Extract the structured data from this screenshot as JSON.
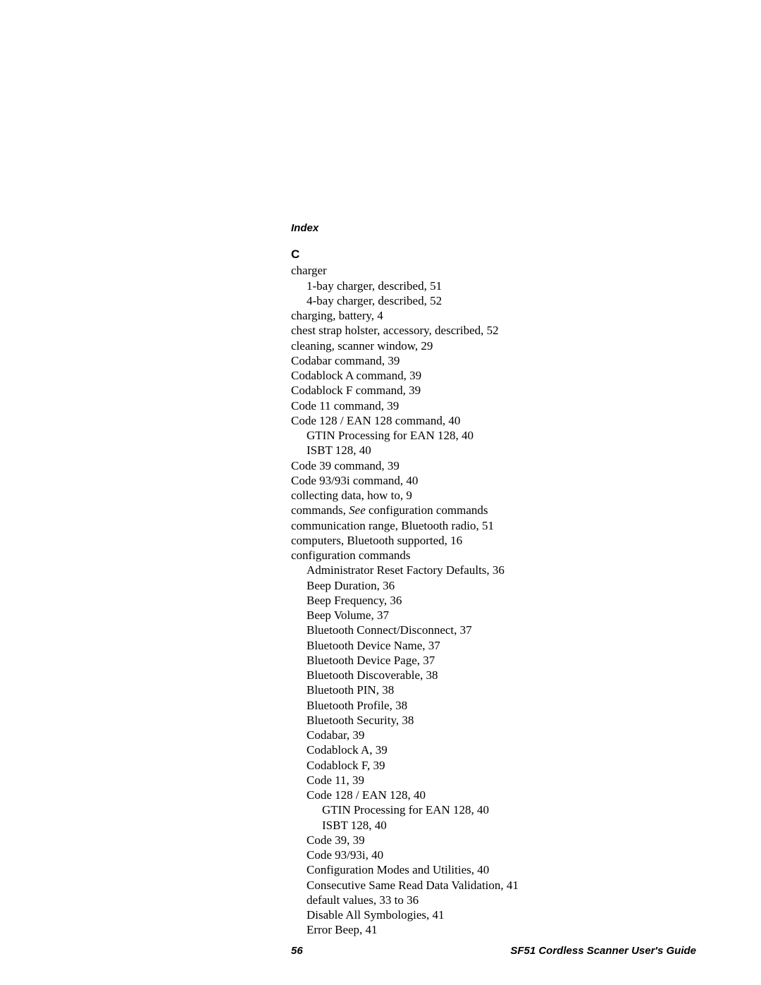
{
  "header": {
    "title": "Index"
  },
  "section": {
    "letter": "C"
  },
  "lines": [
    {
      "cls": "entry",
      "text": "charger"
    },
    {
      "cls": "sub1",
      "text": "1-bay charger, described, 51"
    },
    {
      "cls": "sub1",
      "text": "4-bay charger, described, 52"
    },
    {
      "cls": "entry",
      "text": "charging, battery, 4"
    },
    {
      "cls": "entry",
      "text": "chest strap holster, accessory, described, 52"
    },
    {
      "cls": "entry",
      "text": "cleaning, scanner window, 29"
    },
    {
      "cls": "entry",
      "text": "Codabar command, 39"
    },
    {
      "cls": "entry",
      "text": "Codablock A command, 39"
    },
    {
      "cls": "entry",
      "text": "Codablock F command, 39"
    },
    {
      "cls": "entry",
      "text": "Code 11 command, 39"
    },
    {
      "cls": "entry",
      "text": "Code 128 / EAN 128 command, 40"
    },
    {
      "cls": "sub1",
      "text": "GTIN Processing for EAN 128, 40"
    },
    {
      "cls": "sub1",
      "text": "ISBT 128, 40"
    },
    {
      "cls": "entry",
      "text": "Code 39 command, 39"
    },
    {
      "cls": "entry",
      "text": "Code 93/93i command, 40"
    },
    {
      "cls": "entry",
      "text": "collecting data, how to, 9"
    },
    {
      "cls": "entry",
      "pre": "commands, ",
      "italic": "See",
      "post": " configuration commands"
    },
    {
      "cls": "entry",
      "text": "communication range, Bluetooth radio, 51"
    },
    {
      "cls": "entry",
      "text": "computers, Bluetooth supported, 16"
    },
    {
      "cls": "entry",
      "text": "configuration commands"
    },
    {
      "cls": "sub1",
      "text": "Administrator Reset Factory Defaults, 36"
    },
    {
      "cls": "sub1",
      "text": "Beep Duration, 36"
    },
    {
      "cls": "sub1",
      "text": "Beep Frequency, 36"
    },
    {
      "cls": "sub1",
      "text": "Beep Volume, 37"
    },
    {
      "cls": "sub1",
      "text": "Bluetooth Connect/Disconnect, 37"
    },
    {
      "cls": "sub1",
      "text": "Bluetooth Device Name, 37"
    },
    {
      "cls": "sub1",
      "text": "Bluetooth Device Page, 37"
    },
    {
      "cls": "sub1",
      "text": "Bluetooth Discoverable, 38"
    },
    {
      "cls": "sub1",
      "text": "Bluetooth PIN, 38"
    },
    {
      "cls": "sub1",
      "text": "Bluetooth Profile, 38"
    },
    {
      "cls": "sub1",
      "text": "Bluetooth Security, 38"
    },
    {
      "cls": "sub1",
      "text": "Codabar, 39"
    },
    {
      "cls": "sub1",
      "text": "Codablock A, 39"
    },
    {
      "cls": "sub1",
      "text": "Codablock F, 39"
    },
    {
      "cls": "sub1",
      "text": "Code 11, 39"
    },
    {
      "cls": "sub1",
      "text": "Code 128 / EAN 128, 40"
    },
    {
      "cls": "sub2",
      "text": "GTIN Processing for EAN 128, 40"
    },
    {
      "cls": "sub2",
      "text": "ISBT 128, 40"
    },
    {
      "cls": "sub1",
      "text": "Code 39, 39"
    },
    {
      "cls": "sub1",
      "text": "Code 93/93i, 40"
    },
    {
      "cls": "sub1",
      "text": "Configuration Modes and Utilities, 40"
    },
    {
      "cls": "sub1",
      "text": "Consecutive Same Read Data Validation, 41"
    },
    {
      "cls": "sub1",
      "text": "default values, 33 to 36"
    },
    {
      "cls": "sub1",
      "text": "Disable All Symbologies, 41"
    },
    {
      "cls": "sub1",
      "text": "Error Beep, 41"
    }
  ],
  "footer": {
    "page": "56",
    "title": "SF51 Cordless Scanner User's Guide"
  }
}
